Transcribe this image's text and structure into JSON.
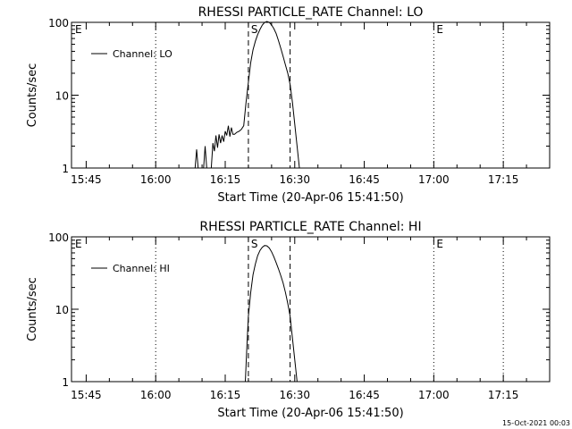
{
  "footer": {
    "timestamp": "15-Oct-2021 00:03"
  },
  "chart_data": [
    {
      "type": "line",
      "title": "RHESSI PARTICLE_RATE Channel: LO",
      "xlabel": "Start Time (20-Apr-06 15:41:50)",
      "ylabel": "Counts/sec",
      "yscale": "log",
      "ylim": [
        1,
        100
      ],
      "xlim": [
        "15:41:50",
        "17:25:00"
      ],
      "x_ticks": [
        "15:45",
        "16:00",
        "16:15",
        "16:30",
        "16:45",
        "17:00",
        "17:15"
      ],
      "y_ticks": [
        "1",
        "10",
        "100"
      ],
      "legend": {
        "position": "top-left",
        "entry": "Channel: LO"
      },
      "markers": [
        {
          "label": "E",
          "time": "15:41:50",
          "style": "dotted"
        },
        {
          "label": "",
          "time": "16:00",
          "style": "dotted"
        },
        {
          "label": "S",
          "time": "16:20:00",
          "style": "dashed"
        },
        {
          "label": "",
          "time": "16:29:00",
          "style": "dashed"
        },
        {
          "label": "E",
          "time": "17:00:00",
          "style": "dotted"
        },
        {
          "label": "",
          "time": "17:15:00",
          "style": "dotted"
        }
      ],
      "series": [
        {
          "name": "Channel: LO",
          "segments": [
            [
              [
                "16:08:30",
                1
              ],
              [
                "16:08:50",
                1.8
              ],
              [
                "16:09:10",
                1
              ]
            ],
            [
              [
                "16:10:20",
                1
              ],
              [
                "16:10:40",
                2
              ],
              [
                "16:11:00",
                1
              ]
            ],
            [
              [
                "16:12:00",
                1
              ],
              [
                "16:12:20",
                2.2
              ],
              [
                "16:12:40",
                1.7
              ],
              [
                "16:13:00",
                2.8
              ],
              [
                "16:13:20",
                1.9
              ],
              [
                "16:13:40",
                2.9
              ],
              [
                "16:14:00",
                2.2
              ],
              [
                "16:14:20",
                2.8
              ],
              [
                "16:14:40",
                2.3
              ],
              [
                "16:15:00",
                3.2
              ],
              [
                "16:15:20",
                2.8
              ],
              [
                "16:15:40",
                3.8
              ],
              [
                "16:16:00",
                2.7
              ],
              [
                "16:16:20",
                3.6
              ],
              [
                "16:16:40",
                2.9
              ],
              [
                "16:17:00",
                2.9
              ],
              [
                "16:17:30",
                3.1
              ],
              [
                "16:18:00",
                3.2
              ],
              [
                "16:18:30",
                3.4
              ],
              [
                "16:19:00",
                3.8
              ],
              [
                "16:19:30",
                8
              ],
              [
                "16:20:00",
                15
              ],
              [
                "16:20:30",
                28
              ],
              [
                "16:21:00",
                42
              ],
              [
                "16:21:30",
                55
              ],
              [
                "16:22:00",
                68
              ],
              [
                "16:22:30",
                80
              ],
              [
                "16:23:00",
                92
              ],
              [
                "16:23:30",
                100
              ],
              [
                "16:24:00",
                105
              ],
              [
                "16:24:30",
                100
              ],
              [
                "16:25:00",
                92
              ],
              [
                "16:25:30",
                82
              ],
              [
                "16:26:00",
                70
              ],
              [
                "16:26:30",
                56
              ],
              [
                "16:27:00",
                44
              ],
              [
                "16:27:30",
                34
              ],
              [
                "16:28:00",
                26
              ],
              [
                "16:28:30",
                20
              ],
              [
                "16:29:00",
                14
              ],
              [
                "16:29:30",
                8
              ],
              [
                "16:30:00",
                4
              ],
              [
                "16:30:30",
                2
              ],
              [
                "16:31:00",
                1
              ]
            ]
          ]
        }
      ]
    },
    {
      "type": "line",
      "title": "RHESSI PARTICLE_RATE Channel: HI",
      "xlabel": "Start Time (20-Apr-06 15:41:50)",
      "ylabel": "Counts/sec",
      "yscale": "log",
      "ylim": [
        1,
        100
      ],
      "xlim": [
        "15:41:50",
        "17:25:00"
      ],
      "x_ticks": [
        "15:45",
        "16:00",
        "16:15",
        "16:30",
        "16:45",
        "17:00",
        "17:15"
      ],
      "y_ticks": [
        "1",
        "10",
        "100"
      ],
      "legend": {
        "position": "top-left",
        "entry": "Channel: HI"
      },
      "markers": [
        {
          "label": "E",
          "time": "15:41:50",
          "style": "dotted"
        },
        {
          "label": "",
          "time": "16:00",
          "style": "dotted"
        },
        {
          "label": "S",
          "time": "16:20:00",
          "style": "dashed"
        },
        {
          "label": "",
          "time": "16:29:00",
          "style": "dashed"
        },
        {
          "label": "E",
          "time": "17:00:00",
          "style": "dotted"
        },
        {
          "label": "",
          "time": "17:15:00",
          "style": "dotted"
        }
      ],
      "series": [
        {
          "name": "Channel: HI",
          "segments": [
            [
              [
                "16:19:20",
                1
              ],
              [
                "16:19:40",
                3
              ],
              [
                "16:20:00",
                8
              ],
              [
                "16:20:30",
                17
              ],
              [
                "16:21:00",
                30
              ],
              [
                "16:21:30",
                42
              ],
              [
                "16:22:00",
                55
              ],
              [
                "16:22:30",
                65
              ],
              [
                "16:23:00",
                72
              ],
              [
                "16:23:30",
                76
              ],
              [
                "16:24:00",
                75
              ],
              [
                "16:24:30",
                70
              ],
              [
                "16:25:00",
                62
              ],
              [
                "16:25:30",
                53
              ],
              [
                "16:26:00",
                44
              ],
              [
                "16:26:30",
                36
              ],
              [
                "16:27:00",
                29
              ],
              [
                "16:27:30",
                23
              ],
              [
                "16:28:00",
                17
              ],
              [
                "16:28:30",
                12
              ],
              [
                "16:29:00",
                8
              ],
              [
                "16:29:30",
                4
              ],
              [
                "16:30:00",
                2
              ],
              [
                "16:30:30",
                1
              ]
            ]
          ]
        }
      ]
    }
  ]
}
